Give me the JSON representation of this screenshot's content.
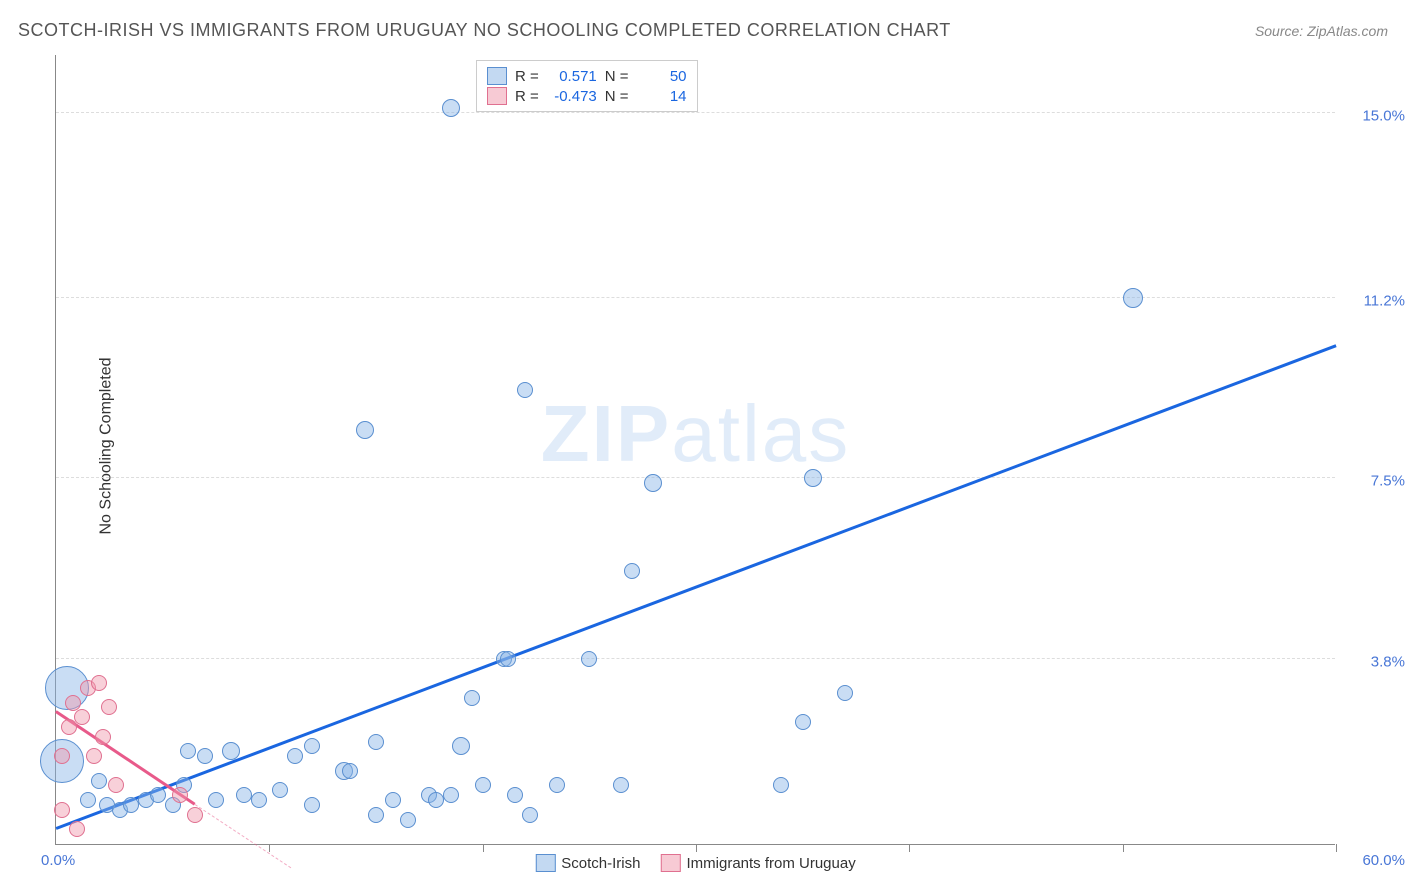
{
  "header": {
    "title": "SCOTCH-IRISH VS IMMIGRANTS FROM URUGUAY NO SCHOOLING COMPLETED CORRELATION CHART",
    "source": "Source: ZipAtlas.com"
  },
  "ylabel": "No Schooling Completed",
  "watermark_bold": "ZIP",
  "watermark_rest": "atlas",
  "chart": {
    "type": "scatter",
    "xlim": [
      0,
      60
    ],
    "ylim": [
      0,
      16.2
    ],
    "x_origin_label": "0.0%",
    "x_max_label": "60.0%",
    "yticks": [
      {
        "value": 3.8,
        "label": "3.8%"
      },
      {
        "value": 7.5,
        "label": "7.5%"
      },
      {
        "value": 11.2,
        "label": "11.2%"
      },
      {
        "value": 15.0,
        "label": "15.0%"
      }
    ],
    "xticks": [
      10,
      20,
      30,
      40,
      50,
      60
    ],
    "background_color": "#ffffff",
    "grid_color": "#dddddd",
    "axis_color": "#888888",
    "label_color": "#4876d6",
    "series": [
      {
        "name": "Scotch-Irish",
        "color_fill": "rgba(135,180,230,0.45)",
        "color_stroke": "#5a8fd0",
        "legend_label": "Scotch-Irish",
        "stats": {
          "r": "0.571",
          "n": "50"
        },
        "trend": {
          "x1": 0,
          "y1": 0.3,
          "x2": 60,
          "y2": 10.2,
          "color": "#1a66e0",
          "width": 2.5
        },
        "points": [
          {
            "x": 0.5,
            "y": 3.2,
            "size": 44
          },
          {
            "x": 0.3,
            "y": 1.7,
            "size": 44
          },
          {
            "x": 1.5,
            "y": 0.9,
            "size": 16
          },
          {
            "x": 2.4,
            "y": 0.8,
            "size": 16
          },
          {
            "x": 3.0,
            "y": 0.7,
            "size": 16
          },
          {
            "x": 3.5,
            "y": 0.8,
            "size": 16
          },
          {
            "x": 4.2,
            "y": 0.9,
            "size": 16
          },
          {
            "x": 4.8,
            "y": 1.0,
            "size": 16
          },
          {
            "x": 5.5,
            "y": 0.8,
            "size": 16
          },
          {
            "x": 6.2,
            "y": 1.9,
            "size": 16
          },
          {
            "x": 7.0,
            "y": 1.8,
            "size": 16
          },
          {
            "x": 7.5,
            "y": 0.9,
            "size": 16
          },
          {
            "x": 8.2,
            "y": 1.9,
            "size": 18
          },
          {
            "x": 8.8,
            "y": 1.0,
            "size": 16
          },
          {
            "x": 9.5,
            "y": 0.9,
            "size": 16
          },
          {
            "x": 10.5,
            "y": 1.1,
            "size": 16
          },
          {
            "x": 11.2,
            "y": 1.8,
            "size": 16
          },
          {
            "x": 12.0,
            "y": 0.8,
            "size": 16
          },
          {
            "x": 12.0,
            "y": 2.0,
            "size": 16
          },
          {
            "x": 13.5,
            "y": 1.5,
            "size": 18
          },
          {
            "x": 13.8,
            "y": 1.5,
            "size": 16
          },
          {
            "x": 14.5,
            "y": 8.5,
            "size": 18
          },
          {
            "x": 15.0,
            "y": 2.1,
            "size": 16
          },
          {
            "x": 15.0,
            "y": 0.6,
            "size": 16
          },
          {
            "x": 15.8,
            "y": 0.9,
            "size": 16
          },
          {
            "x": 16.5,
            "y": 0.5,
            "size": 16
          },
          {
            "x": 17.5,
            "y": 1.0,
            "size": 16
          },
          {
            "x": 17.8,
            "y": 0.9,
            "size": 16
          },
          {
            "x": 18.5,
            "y": 1.0,
            "size": 16
          },
          {
            "x": 18.5,
            "y": 15.1,
            "size": 18
          },
          {
            "x": 19.0,
            "y": 2.0,
            "size": 18
          },
          {
            "x": 19.5,
            "y": 3.0,
            "size": 16
          },
          {
            "x": 20.0,
            "y": 1.2,
            "size": 16
          },
          {
            "x": 21.0,
            "y": 3.8,
            "size": 16
          },
          {
            "x": 21.2,
            "y": 3.8,
            "size": 16
          },
          {
            "x": 21.5,
            "y": 1.0,
            "size": 16
          },
          {
            "x": 22.0,
            "y": 9.3,
            "size": 16
          },
          {
            "x": 22.2,
            "y": 0.6,
            "size": 16
          },
          {
            "x": 23.5,
            "y": 1.2,
            "size": 16
          },
          {
            "x": 25.0,
            "y": 3.8,
            "size": 16
          },
          {
            "x": 26.5,
            "y": 1.2,
            "size": 16
          },
          {
            "x": 27.0,
            "y": 5.6,
            "size": 16
          },
          {
            "x": 28.0,
            "y": 7.4,
            "size": 18
          },
          {
            "x": 34.0,
            "y": 1.2,
            "size": 16
          },
          {
            "x": 35.0,
            "y": 2.5,
            "size": 16
          },
          {
            "x": 35.5,
            "y": 7.5,
            "size": 18
          },
          {
            "x": 37.0,
            "y": 3.1,
            "size": 16
          },
          {
            "x": 50.5,
            "y": 11.2,
            "size": 20
          },
          {
            "x": 2.0,
            "y": 1.3,
            "size": 16
          },
          {
            "x": 6.0,
            "y": 1.2,
            "size": 16
          }
        ]
      },
      {
        "name": "Immigrants from Uruguay",
        "color_fill": "rgba(240,150,170,0.45)",
        "color_stroke": "#e07090",
        "legend_label": "Immigrants from Uruguay",
        "stats": {
          "r": "-0.473",
          "n": "14"
        },
        "trend": {
          "x1": 0,
          "y1": 2.7,
          "x2": 6.5,
          "y2": 0.8,
          "color": "#e85a8a",
          "width": 2.5
        },
        "trend_dash": {
          "x1": 6.5,
          "y1": 0.8,
          "x2": 11,
          "y2": -0.5
        },
        "points": [
          {
            "x": 0.6,
            "y": 2.4,
            "size": 16
          },
          {
            "x": 0.8,
            "y": 2.9,
            "size": 16
          },
          {
            "x": 1.2,
            "y": 2.6,
            "size": 16
          },
          {
            "x": 1.5,
            "y": 3.2,
            "size": 16
          },
          {
            "x": 2.0,
            "y": 3.3,
            "size": 16
          },
          {
            "x": 2.5,
            "y": 2.8,
            "size": 16
          },
          {
            "x": 2.2,
            "y": 2.2,
            "size": 16
          },
          {
            "x": 1.8,
            "y": 1.8,
            "size": 16
          },
          {
            "x": 0.3,
            "y": 1.8,
            "size": 16
          },
          {
            "x": 0.3,
            "y": 0.7,
            "size": 16
          },
          {
            "x": 1.0,
            "y": 0.3,
            "size": 16
          },
          {
            "x": 2.8,
            "y": 1.2,
            "size": 16
          },
          {
            "x": 5.8,
            "y": 1.0,
            "size": 16
          },
          {
            "x": 6.5,
            "y": 0.6,
            "size": 16
          }
        ]
      }
    ]
  },
  "legend": {
    "r_label": "R =",
    "n_label": "N ="
  }
}
